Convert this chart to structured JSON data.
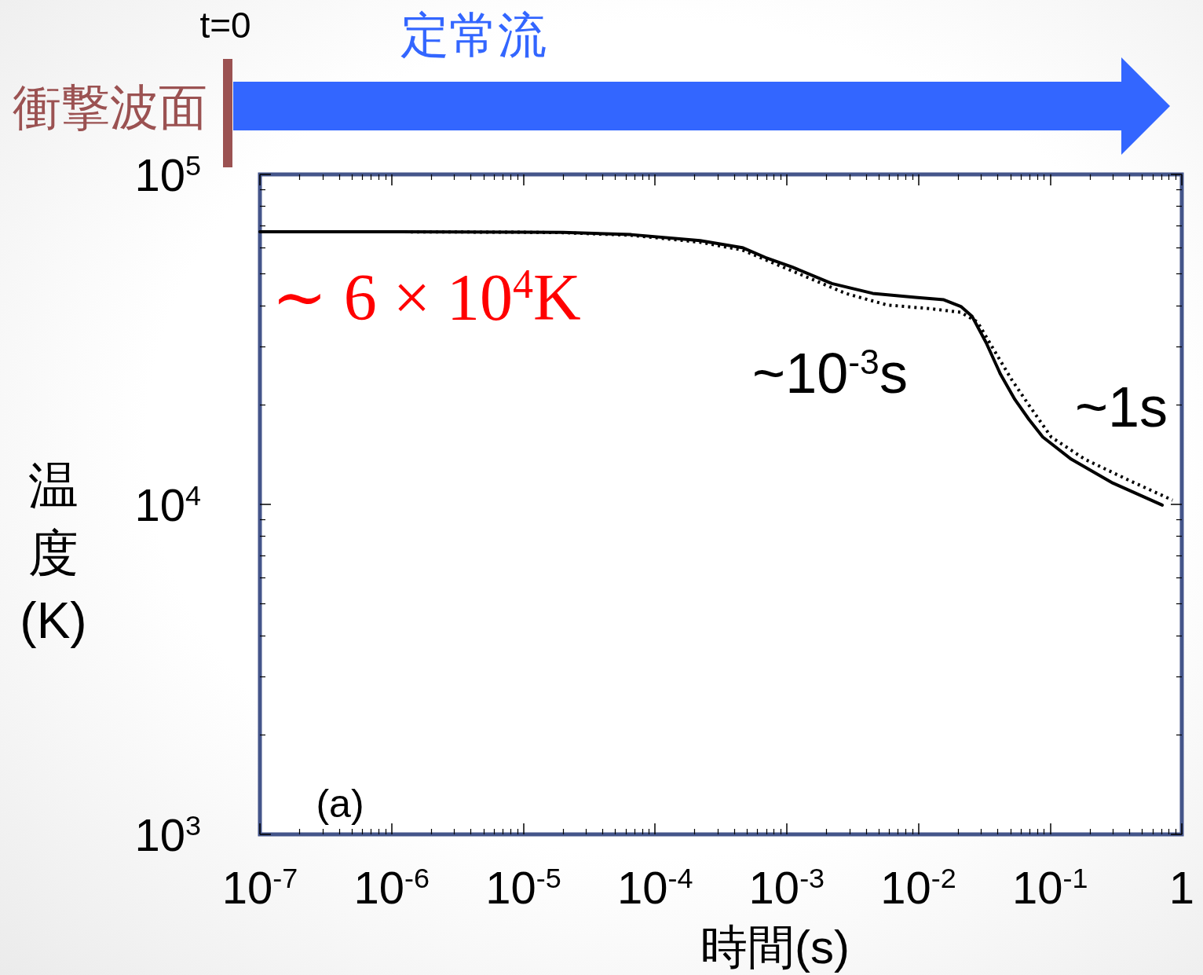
{
  "chart_data": {
    "type": "line",
    "xlabel": "時間(s)",
    "ylabel": "温度(K)",
    "log": "xy",
    "xlim": [
      1e-07,
      1
    ],
    "ylim": [
      1000,
      100000
    ],
    "xticks": [
      {
        "value": 1e-07,
        "label": "10$^{-7}$"
      },
      {
        "value": 2e-07,
        "label": null
      },
      {
        "value": 3e-07,
        "label": null
      },
      {
        "value": 4e-07,
        "label": null
      },
      {
        "value": 5e-07,
        "label": null
      },
      {
        "value": 6e-07,
        "label": null
      },
      {
        "value": 7e-07,
        "label": null
      },
      {
        "value": 8e-07,
        "label": null
      },
      {
        "value": 9e-07,
        "label": null
      },
      {
        "value": 1e-06,
        "label": "10$^{-6}$"
      },
      {
        "value": 2e-06,
        "label": null
      },
      {
        "value": 3e-06,
        "label": null
      },
      {
        "value": 4e-06,
        "label": null
      },
      {
        "value": 5e-06,
        "label": null
      },
      {
        "value": 6e-06,
        "label": null
      },
      {
        "value": 7e-06,
        "label": null
      },
      {
        "value": 8e-06,
        "label": null
      },
      {
        "value": 9e-06,
        "label": null
      },
      {
        "value": 1e-05,
        "label": "10$^{-5}$"
      },
      {
        "value": 2e-05,
        "label": null
      },
      {
        "value": 3e-05,
        "label": null
      },
      {
        "value": 4e-05,
        "label": null
      },
      {
        "value": 5e-05,
        "label": null
      },
      {
        "value": 6e-05,
        "label": null
      },
      {
        "value": 7e-05,
        "label": null
      },
      {
        "value": 8e-05,
        "label": null
      },
      {
        "value": 9e-05,
        "label": null
      },
      {
        "value": 0.0001,
        "label": "10$^{-4}$"
      },
      {
        "value": 0.0002,
        "label": null
      },
      {
        "value": 0.0003,
        "label": null
      },
      {
        "value": 0.0004,
        "label": null
      },
      {
        "value": 0.0005,
        "label": null
      },
      {
        "value": 0.0006,
        "label": null
      },
      {
        "value": 0.0007,
        "label": null
      },
      {
        "value": 0.0008,
        "label": null
      },
      {
        "value": 0.0009,
        "label": null
      },
      {
        "value": 0.001,
        "label": "10$^{-3}$"
      },
      {
        "value": 0.002,
        "label": null
      },
      {
        "value": 0.003,
        "label": null
      },
      {
        "value": 0.004,
        "label": null
      },
      {
        "value": 0.005,
        "label": null
      },
      {
        "value": 0.006,
        "label": null
      },
      {
        "value": 0.007,
        "label": null
      },
      {
        "value": 0.008,
        "label": null
      },
      {
        "value": 0.009,
        "label": null
      },
      {
        "value": 0.01,
        "label": "10$^{-2}$"
      },
      {
        "value": 0.02,
        "label": null
      },
      {
        "value": 0.03,
        "label": null
      },
      {
        "value": 0.04,
        "label": null
      },
      {
        "value": 0.05,
        "label": null
      },
      {
        "value": 0.06,
        "label": null
      },
      {
        "value": 0.07,
        "label": null
      },
      {
        "value": 0.08,
        "label": null
      },
      {
        "value": 0.09,
        "label": null
      },
      {
        "value": 0.1,
        "label": "10$^{-1}$"
      },
      {
        "value": 0.2,
        "label": null
      },
      {
        "value": 0.3,
        "label": null
      },
      {
        "value": 0.4,
        "label": null
      },
      {
        "value": 0.5,
        "label": null
      },
      {
        "value": 0.6,
        "label": null
      },
      {
        "value": 0.7,
        "label": null
      },
      {
        "value": 0.8,
        "label": null
      },
      {
        "value": 0.9,
        "label": null
      },
      {
        "value": 1,
        "label": "1"
      }
    ],
    "yticks": [
      {
        "value": 1000,
        "label": "10$^{3}$"
      },
      {
        "value": 2000,
        "label": null
      },
      {
        "value": 3000,
        "label": null
      },
      {
        "value": 4000,
        "label": null
      },
      {
        "value": 5000,
        "label": null
      },
      {
        "value": 6000,
        "label": null
      },
      {
        "value": 7000,
        "label": null
      },
      {
        "value": 8000,
        "label": null
      },
      {
        "value": 9000,
        "label": null
      },
      {
        "value": 10000,
        "label": "10$^{4}$"
      },
      {
        "value": 20000,
        "label": null
      },
      {
        "value": 30000,
        "label": null
      },
      {
        "value": 40000,
        "label": null
      },
      {
        "value": 50000,
        "label": null
      },
      {
        "value": 60000,
        "label": null
      },
      {
        "value": 70000,
        "label": null
      },
      {
        "value": 80000,
        "label": null
      },
      {
        "value": 90000,
        "label": null
      },
      {
        "value": 100000,
        "label": "10$^{5}$"
      }
    ],
    "series": [
      {
        "color": "#000000",
        "line_style": "solid",
        "x": [
          1e-07,
          1e-06,
          1e-05,
          2e-05,
          6.6e-05,
          0.00022,
          0.00046,
          0.00069,
          0.0011,
          0.0022,
          0.0045,
          0.0095,
          0.0156,
          0.021,
          0.0256,
          0.0327,
          0.042,
          0.054,
          0.069,
          0.088,
          0.145,
          0.3,
          0.71
        ],
        "values": [
          67000,
          67000,
          66800,
          66700,
          65700,
          63000,
          60000,
          56000,
          52400,
          46700,
          43600,
          42400,
          41700,
          39800,
          37100,
          30900,
          24800,
          20800,
          18100,
          16000,
          13700,
          11600,
          9950
        ]
      },
      {
        "color": "#000000",
        "line_style": "dotted",
        "x": [
          1e-07,
          1e-06,
          1e-05,
          2e-05,
          6.6e-05,
          0.00022,
          0.00046,
          0.0011,
          0.0028,
          0.0058,
          0.0122,
          0.021,
          0.0281,
          0.0378,
          0.051,
          0.069,
          0.102,
          0.184,
          0.385,
          0.85
        ],
        "values": [
          67000,
          67000,
          66800,
          66600,
          65400,
          62300,
          59000,
          51000,
          43600,
          40200,
          39200,
          38200,
          35700,
          29200,
          23900,
          20000,
          16000,
          13700,
          11900,
          10300
        ]
      }
    ],
    "annotations": [
      "∼ 6 × 10$^{4}$K",
      "~10$^{-3}$s",
      "~1s",
      "(a)",
      "t=0",
      "定常流",
      "衝撃波面"
    ]
  }
}
